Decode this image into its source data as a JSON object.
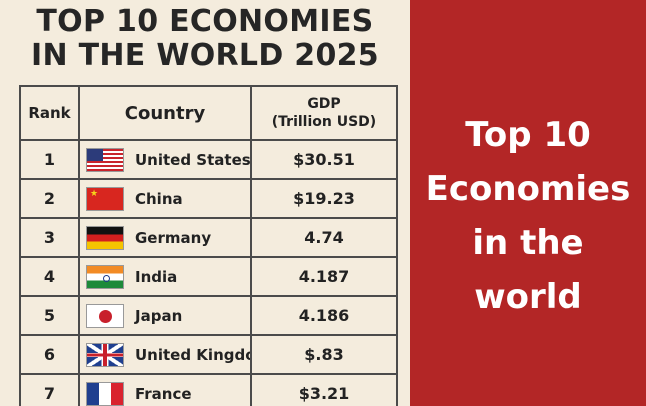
{
  "heading": {
    "line1": "TOP 10 ECONOMIES",
    "line2": "IN THE WORLD 2025"
  },
  "table": {
    "headers": {
      "rank": "Rank",
      "country": "Country",
      "gdp_line1": "GDP",
      "gdp_line2": "(Trillion USD)"
    },
    "rows": [
      {
        "rank": "1",
        "country": "United States",
        "gdp": "$30.51",
        "flag": "us-flag-icon"
      },
      {
        "rank": "2",
        "country": "China",
        "gdp": "$19.23",
        "flag": "china-flag-icon"
      },
      {
        "rank": "3",
        "country": "Germany",
        "gdp": "4.74",
        "flag": "germany-flag-icon"
      },
      {
        "rank": "4",
        "country": "India",
        "gdp": "4.187",
        "flag": "india-flag-icon"
      },
      {
        "rank": "5",
        "country": "Japan",
        "gdp": "4.186",
        "flag": "japan-flag-icon"
      },
      {
        "rank": "6",
        "country": "United Kingdom",
        "gdp": "$.83",
        "flag": "uk-flag-icon"
      },
      {
        "rank": "7",
        "country": "France",
        "gdp": "$3.21",
        "flag": "france-flag-icon"
      }
    ]
  },
  "banner": {
    "line1": "Top 10",
    "line2": "Economies",
    "line3": "in the",
    "line4": "world"
  },
  "colors": {
    "banner_bg": "#b32626",
    "left_bg": "#f4ecdd",
    "text": "#222222"
  }
}
